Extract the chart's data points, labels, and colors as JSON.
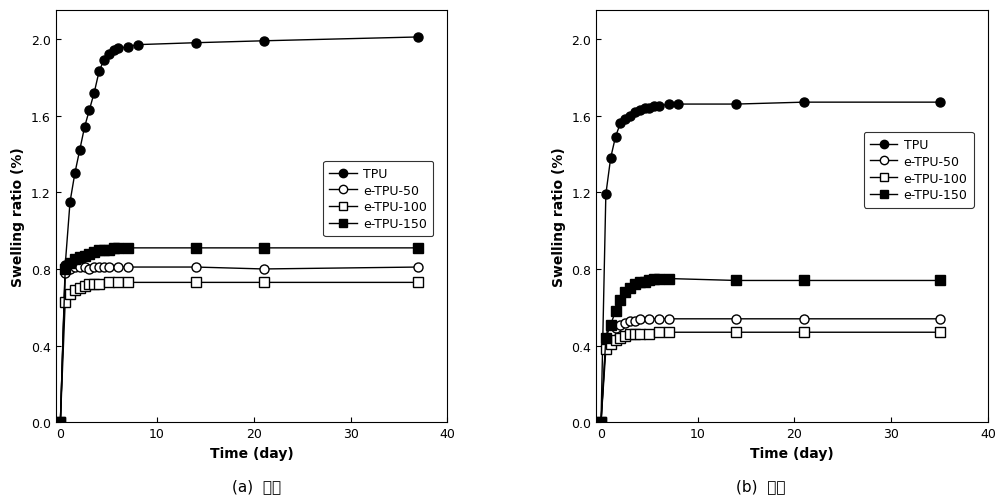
{
  "left_title": "(a)  해수",
  "right_title": "(b)  오일",
  "ylabel": "Swelling ratio (%)",
  "xlabel": "Time (day)",
  "ylim": [
    0.0,
    2.15
  ],
  "xlim": [
    -0.5,
    40
  ],
  "yticks": [
    0.0,
    0.4,
    0.8,
    1.2,
    1.6,
    2.0
  ],
  "xticks": [
    0,
    10,
    20,
    30,
    40
  ],
  "left": {
    "TPU": {
      "x": [
        0,
        0.5,
        1,
        1.5,
        2,
        2.5,
        3,
        3.5,
        4,
        4.5,
        5,
        5.5,
        6,
        7,
        8,
        14,
        21,
        37
      ],
      "y": [
        0,
        0.82,
        1.15,
        1.3,
        1.42,
        1.54,
        1.63,
        1.72,
        1.83,
        1.89,
        1.92,
        1.94,
        1.95,
        1.96,
        1.97,
        1.98,
        1.99,
        2.01
      ]
    },
    "e-TPU-50": {
      "x": [
        0,
        0.5,
        1,
        1.5,
        2,
        2.5,
        3,
        3.5,
        4,
        4.5,
        5,
        6,
        7,
        14,
        21,
        37
      ],
      "y": [
        0,
        0.78,
        0.8,
        0.81,
        0.81,
        0.81,
        0.8,
        0.81,
        0.81,
        0.81,
        0.81,
        0.81,
        0.81,
        0.81,
        0.8,
        0.81
      ]
    },
    "e-TPU-100": {
      "x": [
        0,
        0.5,
        1,
        1.5,
        2,
        2.5,
        3,
        3.5,
        4,
        5,
        6,
        7,
        14,
        21,
        37
      ],
      "y": [
        0,
        0.63,
        0.67,
        0.69,
        0.7,
        0.71,
        0.72,
        0.72,
        0.72,
        0.73,
        0.73,
        0.73,
        0.73,
        0.73,
        0.73
      ]
    },
    "e-TPU-150": {
      "x": [
        0,
        0.5,
        1,
        1.5,
        2,
        2.5,
        3,
        3.5,
        4,
        4.5,
        5,
        5.5,
        6,
        7,
        14,
        21,
        37
      ],
      "y": [
        0,
        0.8,
        0.83,
        0.85,
        0.86,
        0.87,
        0.88,
        0.89,
        0.9,
        0.9,
        0.9,
        0.91,
        0.91,
        0.91,
        0.91,
        0.91,
        0.91
      ]
    }
  },
  "right": {
    "TPU": {
      "x": [
        0,
        0.5,
        1,
        1.5,
        2,
        2.5,
        3,
        3.5,
        4,
        4.5,
        5,
        5.5,
        6,
        7,
        8,
        14,
        21,
        35
      ],
      "y": [
        0,
        1.19,
        1.38,
        1.49,
        1.56,
        1.58,
        1.6,
        1.62,
        1.63,
        1.64,
        1.64,
        1.65,
        1.65,
        1.66,
        1.66,
        1.66,
        1.67,
        1.67
      ]
    },
    "e-TPU-50": {
      "x": [
        0,
        0.5,
        1,
        1.5,
        2,
        2.5,
        3,
        3.5,
        4,
        5,
        6,
        7,
        14,
        21,
        35
      ],
      "y": [
        0,
        0.43,
        0.47,
        0.49,
        0.51,
        0.52,
        0.53,
        0.53,
        0.54,
        0.54,
        0.54,
        0.54,
        0.54,
        0.54,
        0.54
      ]
    },
    "e-TPU-100": {
      "x": [
        0,
        0.5,
        1,
        1.5,
        2,
        2.5,
        3,
        3.5,
        4,
        5,
        6,
        7,
        14,
        21,
        35
      ],
      "y": [
        0,
        0.38,
        0.41,
        0.43,
        0.44,
        0.45,
        0.46,
        0.46,
        0.46,
        0.46,
        0.47,
        0.47,
        0.47,
        0.47,
        0.47
      ]
    },
    "e-TPU-150": {
      "x": [
        0,
        0.5,
        1,
        1.5,
        2,
        2.5,
        3,
        3.5,
        4,
        4.5,
        5,
        5.5,
        6,
        7,
        14,
        21,
        35
      ],
      "y": [
        0,
        0.44,
        0.51,
        0.58,
        0.64,
        0.68,
        0.7,
        0.72,
        0.73,
        0.73,
        0.74,
        0.75,
        0.75,
        0.75,
        0.74,
        0.74,
        0.74
      ]
    }
  },
  "series_order": [
    "TPU",
    "e-TPU-50",
    "e-TPU-100",
    "e-TPU-150"
  ],
  "series_styles": {
    "TPU": {
      "marker": "o",
      "fillstyle": "full",
      "markersize": 6.5,
      "linewidth": 1.0
    },
    "e-TPU-50": {
      "marker": "o",
      "fillstyle": "none",
      "markersize": 6.5,
      "linewidth": 1.0
    },
    "e-TPU-100": {
      "marker": "s",
      "fillstyle": "none",
      "markersize": 6.5,
      "linewidth": 1.0
    },
    "e-TPU-150": {
      "marker": "s",
      "fillstyle": "full",
      "markersize": 6.5,
      "linewidth": 1.0
    }
  },
  "color": "#000000",
  "background_color": "#ffffff",
  "font_size_axis_label": 10,
  "font_size_tick": 9,
  "font_size_legend": 9,
  "font_size_caption": 11
}
